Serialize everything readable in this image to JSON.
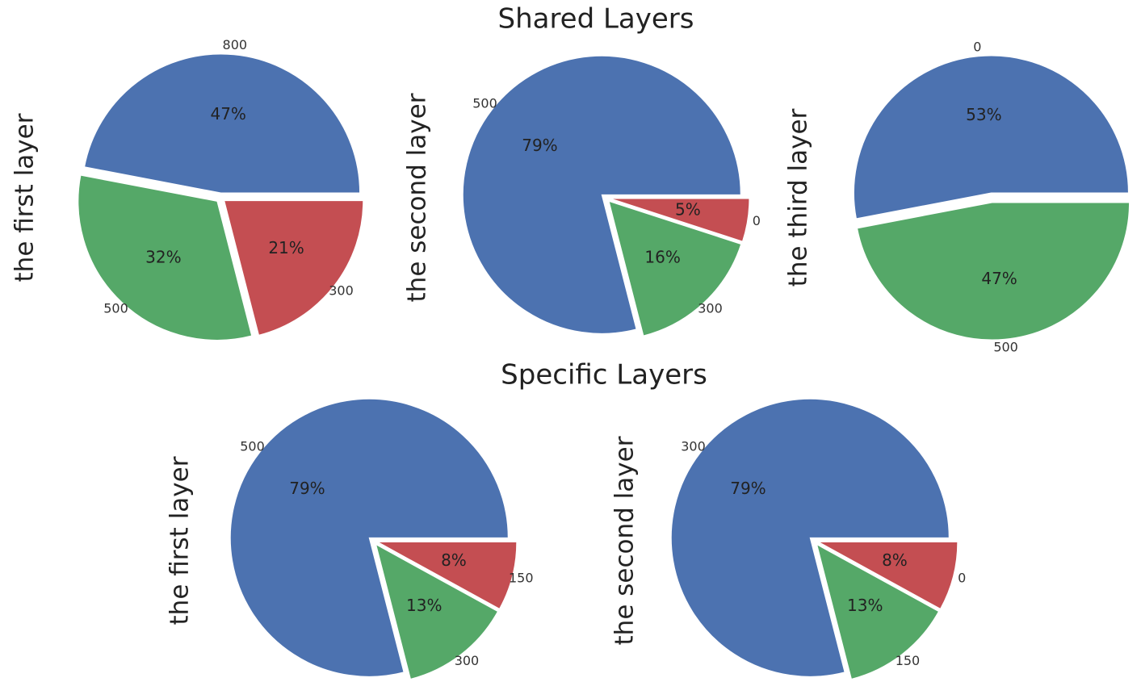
{
  "titles": [
    "Shared Layers",
    "Specific Layers"
  ],
  "chart_data": [
    {
      "type": "pie",
      "ylabel": "the first layer",
      "categories": [
        "800",
        "500",
        "300"
      ],
      "values": [
        47,
        32,
        21
      ],
      "value_labels": [
        "47%",
        "32%",
        "21%"
      ],
      "colors": [
        "#4c72b0",
        "#55a868",
        "#c44e52"
      ]
    },
    {
      "type": "pie",
      "ylabel": "the second layer",
      "categories": [
        "500",
        "300",
        "0"
      ],
      "values": [
        79,
        16,
        5
      ],
      "value_labels": [
        "79%",
        "16%",
        "5%"
      ],
      "colors": [
        "#4c72b0",
        "#55a868",
        "#c44e52"
      ]
    },
    {
      "type": "pie",
      "ylabel": "the third layer",
      "categories": [
        "0",
        "500"
      ],
      "values": [
        53,
        47
      ],
      "value_labels": [
        "53%",
        "47%"
      ],
      "colors": [
        "#4c72b0",
        "#55a868"
      ]
    },
    {
      "type": "pie",
      "ylabel": "the first layer",
      "categories": [
        "500",
        "300",
        "150"
      ],
      "values": [
        79,
        13,
        8
      ],
      "value_labels": [
        "79%",
        "13%",
        "8%"
      ],
      "colors": [
        "#4c72b0",
        "#55a868",
        "#c44e52"
      ]
    },
    {
      "type": "pie",
      "ylabel": "the second layer",
      "categories": [
        "300",
        "150",
        "0"
      ],
      "values": [
        79,
        13,
        8
      ],
      "value_labels": [
        "79%",
        "13%",
        "8%"
      ],
      "colors": [
        "#4c72b0",
        "#55a868",
        "#c44e52"
      ]
    }
  ]
}
